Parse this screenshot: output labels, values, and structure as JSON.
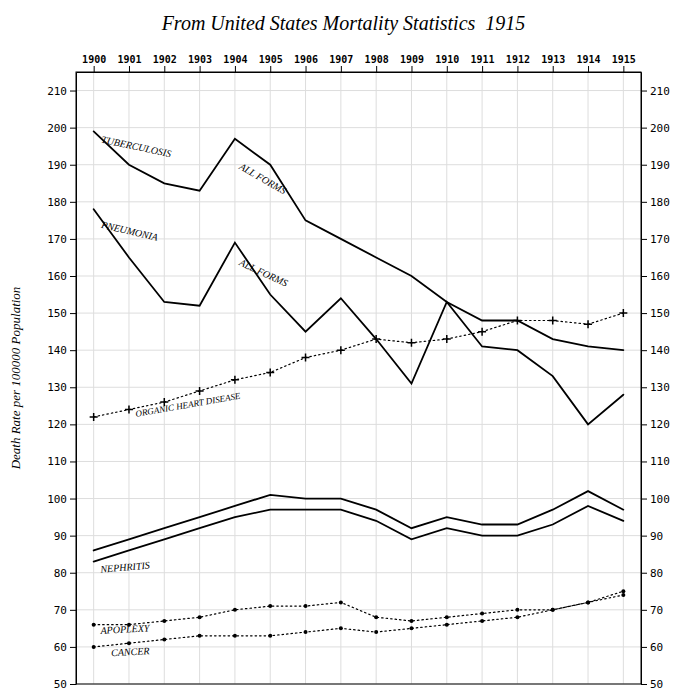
{
  "chart_data": {
    "type": "line",
    "title": "From United States Mortality Statistics  1915",
    "ylabel": "Death Rate per 100000 Population",
    "color": "#000000",
    "x": [
      1900,
      1901,
      1902,
      1903,
      1904,
      1905,
      1906,
      1907,
      1908,
      1909,
      1910,
      1911,
      1912,
      1913,
      1914,
      1915
    ],
    "series": [
      {
        "values": [
          199,
          190,
          185,
          183,
          197,
          190,
          175,
          170,
          165,
          160,
          153,
          148,
          148,
          143,
          141,
          140
        ],
        "line_style": "solid"
      },
      {
        "values": [
          178,
          165,
          153,
          152,
          169,
          155,
          145,
          154,
          143,
          131,
          153,
          141,
          140,
          133,
          120,
          128
        ],
        "line_style": "solid"
      },
      {
        "values": [
          122,
          124,
          126,
          129,
          132,
          134,
          138,
          140,
          143,
          142,
          143,
          145,
          148,
          148,
          147,
          150
        ],
        "line_style": "dotted",
        "marker": "plus"
      },
      {
        "values": [
          86,
          89,
          92,
          95,
          98,
          101,
          100,
          100,
          97,
          92,
          95,
          93,
          93,
          97,
          102,
          97
        ],
        "line_style": "solid"
      },
      {
        "values": [
          83,
          86,
          89,
          92,
          95,
          97,
          97,
          97,
          94,
          89,
          92,
          90,
          90,
          93,
          98,
          94
        ],
        "line_style": "solid"
      },
      {
        "values": [
          66,
          66,
          67,
          68,
          70,
          71,
          71,
          72,
          68,
          67,
          68,
          69,
          70,
          70,
          72,
          74
        ],
        "line_style": "dotted",
        "marker": "point"
      },
      {
        "values": [
          60,
          61,
          62,
          63,
          63,
          63,
          64,
          65,
          64,
          65,
          66,
          67,
          68,
          70,
          72,
          75
        ],
        "line_style": "dotted",
        "marker": "point"
      }
    ],
    "xlim": [
      1899.5,
      1915.5
    ],
    "xticks": [
      1900,
      1901,
      1902,
      1903,
      1904,
      1905,
      1906,
      1907,
      1908,
      1909,
      1910,
      1911,
      1912,
      1913,
      1914,
      1915
    ],
    "ylim": [
      50,
      215
    ],
    "yticks": [
      50,
      60,
      70,
      80,
      90,
      100,
      110,
      120,
      130,
      140,
      150,
      160,
      170,
      180,
      190,
      200,
      210
    ],
    "y2lim": [
      50,
      215
    ],
    "y2ticks": [
      50,
      60,
      70,
      80,
      90,
      100,
      110,
      120,
      130,
      140,
      150,
      160,
      170,
      180,
      190,
      200,
      210
    ],
    "grid": true,
    "annotations": [
      {
        "text": "TUBERCULOSIS",
        "x": 1900.2,
        "y": 196
      },
      {
        "text": "ALL FORMS",
        "x": 1904.1,
        "y": 189
      },
      {
        "text": "PNEUMONIA",
        "x": 1900.2,
        "y": 173
      },
      {
        "text": "ALL FORMS",
        "x": 1904.1,
        "y": 163
      },
      {
        "text": "ORGANIC HEART DISEASE",
        "x": 1901.2,
        "y": 122
      },
      {
        "text": "NEPHRITIS",
        "x": 1900.2,
        "y": 80
      },
      {
        "text": "APOPLEXY",
        "x": 1900.2,
        "y": 63.5
      },
      {
        "text": "CANCER",
        "x": 1900.5,
        "y": 57.5
      }
    ]
  }
}
